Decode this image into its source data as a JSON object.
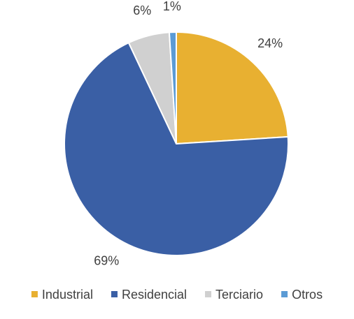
{
  "chart_data": {
    "type": "pie",
    "categories": [
      "Industrial",
      "Residencial",
      "Terciario",
      "Otros"
    ],
    "values": [
      24,
      69,
      6,
      1
    ],
    "value_labels": [
      "24%",
      "69%",
      "6%",
      "1%"
    ],
    "colors": [
      "#e8b031",
      "#3a5fa5",
      "#d0d0d0",
      "#5b9bd5"
    ],
    "legend": "bottom"
  }
}
